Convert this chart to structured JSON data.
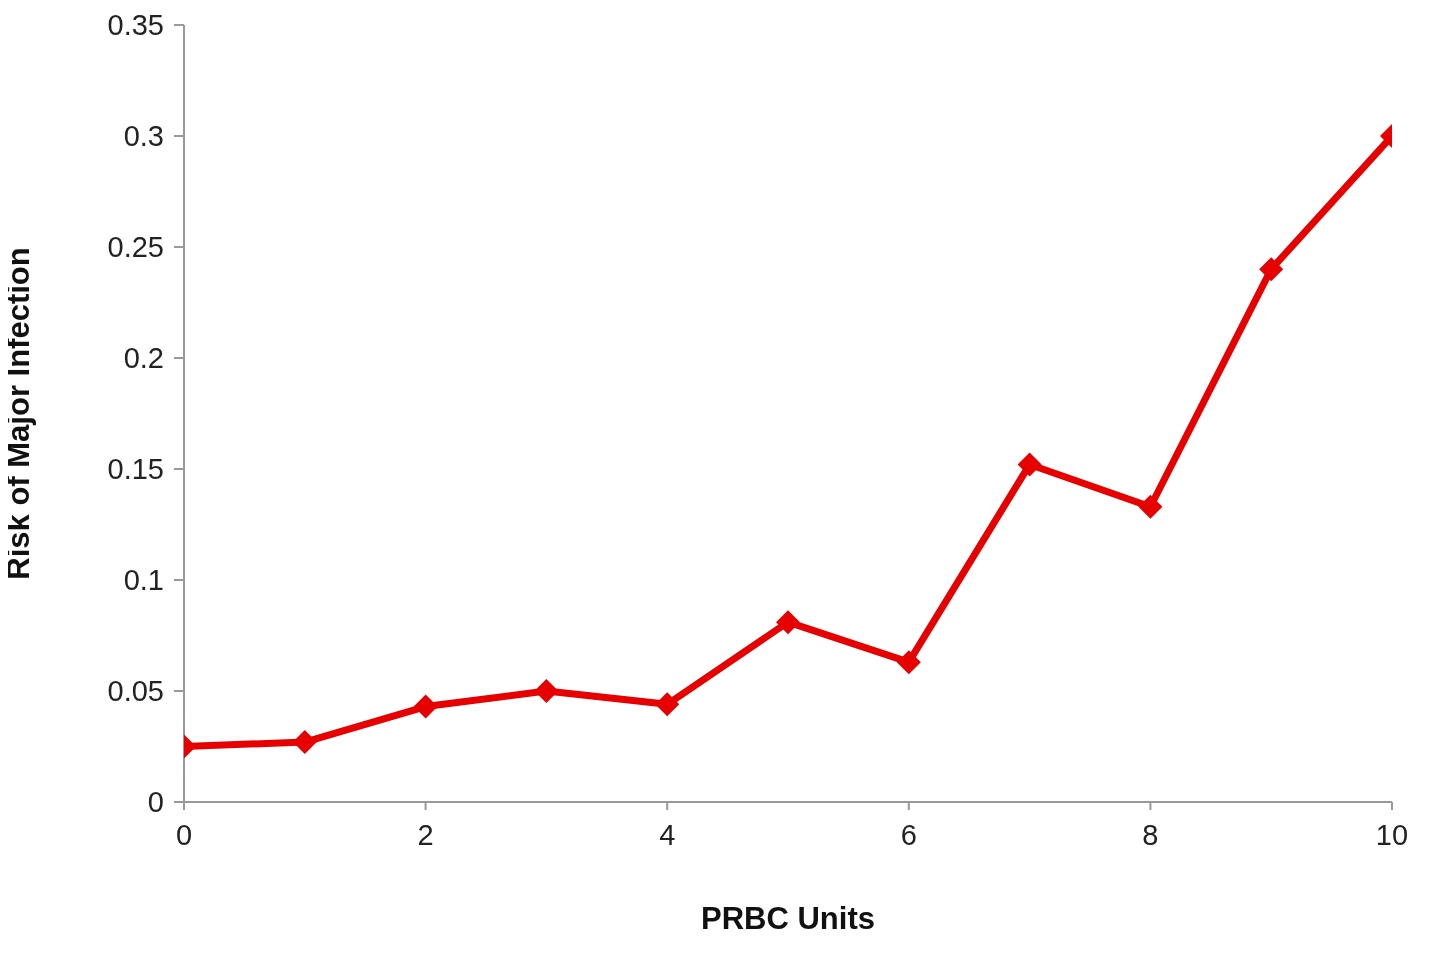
{
  "chart_data": {
    "type": "line",
    "xlabel": "PRBC Units",
    "ylabel": "Risk of Major Infection",
    "x": [
      0,
      1,
      2,
      3,
      4,
      5,
      6,
      7,
      8,
      9,
      10
    ],
    "series": [
      {
        "color": "#e60000",
        "values": [
          0.025,
          0.027,
          0.043,
          0.05,
          0.044,
          0.081,
          0.063,
          0.152,
          0.133,
          0.24,
          0.3
        ]
      }
    ],
    "xlim": [
      0,
      10
    ],
    "xticks": [
      0,
      2,
      4,
      6,
      8,
      10
    ],
    "ylim": [
      0,
      0.35
    ],
    "yticks": [
      0,
      0.05,
      0.1,
      0.15,
      0.2,
      0.25,
      0.3,
      0.35
    ],
    "marker": "diamond",
    "line_style": "solid"
  }
}
